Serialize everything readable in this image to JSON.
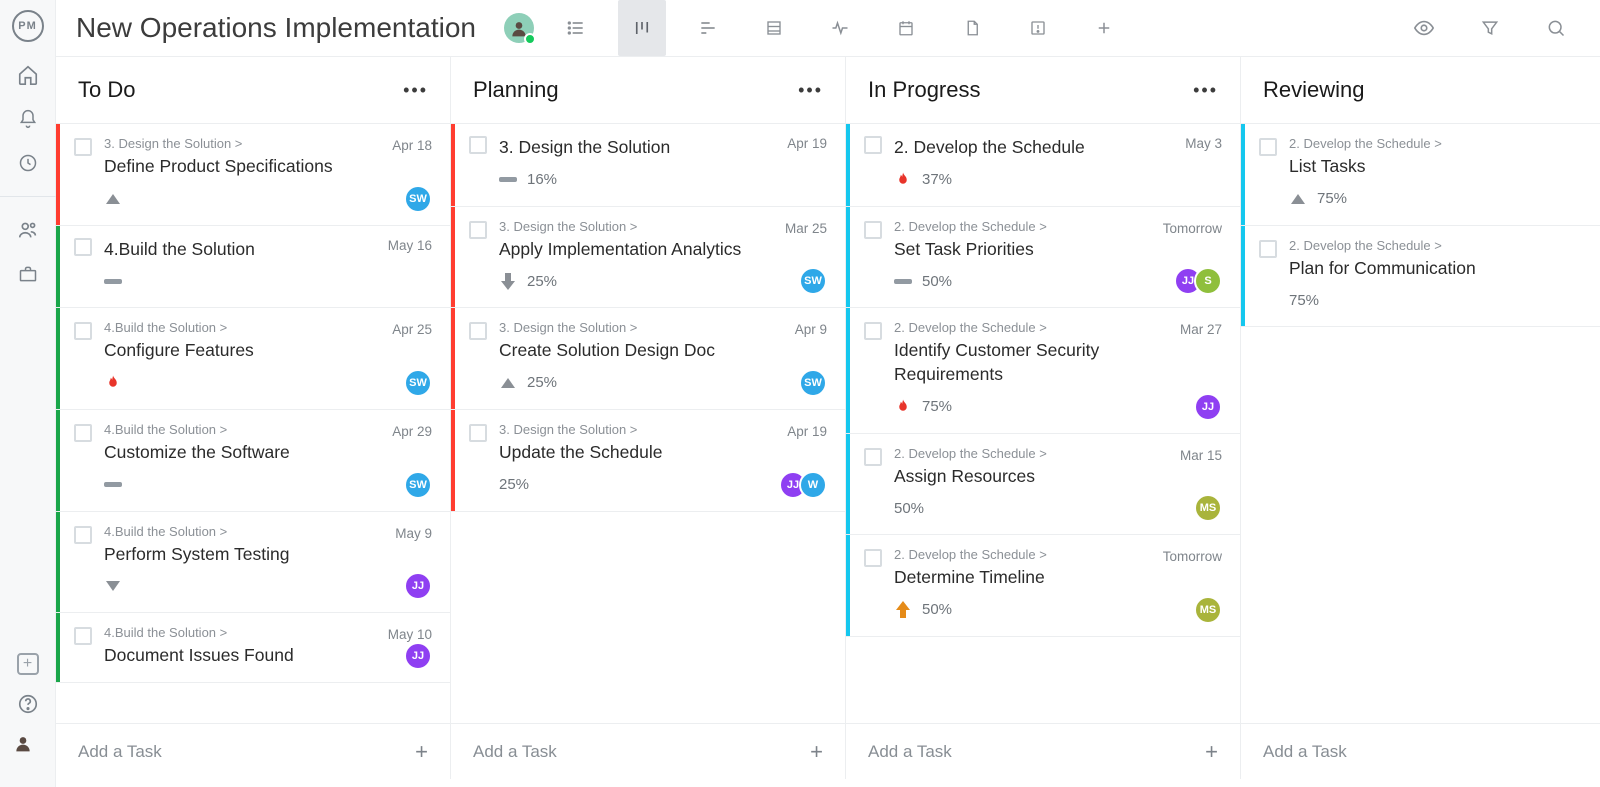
{
  "project_title": "New Operations Implementation",
  "rail": {
    "logo_text": "PM"
  },
  "colors": {
    "red": "#ff3d30",
    "green": "#1aa64a",
    "cyan": "#15c7ee",
    "blueAvatar": "#2fa8e8",
    "purpleAvatar": "#8f3ff2",
    "oliveAvatar": "#a9b43b",
    "limeAvatar": "#8fbf3c",
    "fire": "#e8342a",
    "orange": "#e58b19",
    "grayArrow": "#8a8f95"
  },
  "columns": [
    {
      "id": "todo",
      "title": "To Do",
      "add_label": "Add a Task",
      "cards": [
        {
          "stripe": "#ff3d30",
          "crumb": "3. Design the Solution >",
          "name": "Define Product Specifications",
          "date": "Apr 18",
          "priority": "up-gray",
          "pct": "",
          "assignees": [
            {
              "text": "SW",
              "bg": "#2fa8e8"
            }
          ]
        },
        {
          "stripe": "#1aa64a",
          "crumb": "",
          "name": "4.Build the Solution",
          "date": "May 16",
          "priority": "bar",
          "pct": "",
          "assignees": [],
          "bigtask": true
        },
        {
          "stripe": "#1aa64a",
          "crumb": "4.Build the Solution >",
          "name": "Configure Features",
          "date": "Apr 25",
          "priority": "fire",
          "pct": "",
          "assignees": [
            {
              "text": "SW",
              "bg": "#2fa8e8"
            }
          ]
        },
        {
          "stripe": "#1aa64a",
          "crumb": "4.Build the Solution >",
          "name": "Customize the Software",
          "date": "Apr 29",
          "priority": "bar",
          "pct": "",
          "assignees": [
            {
              "text": "SW",
              "bg": "#2fa8e8"
            }
          ]
        },
        {
          "stripe": "#1aa64a",
          "crumb": "4.Build the Solution >",
          "name": "Perform System Testing",
          "date": "May 9",
          "priority": "down-gray",
          "pct": "",
          "assignees": [
            {
              "text": "JJ",
              "bg": "#8f3ff2"
            }
          ]
        },
        {
          "stripe": "#1aa64a",
          "crumb": "4.Build the Solution >",
          "name": "Document Issues Found",
          "date": "May 10",
          "priority": "",
          "pct": "",
          "assignees": [
            {
              "text": "JJ",
              "bg": "#8f3ff2"
            }
          ]
        }
      ]
    },
    {
      "id": "planning",
      "title": "Planning",
      "add_label": "Add a Task",
      "cards": [
        {
          "stripe": "#ff3d30",
          "crumb": "",
          "name": "3. Design the Solution",
          "date": "Apr 19",
          "priority": "bar",
          "pct": "16%",
          "assignees": [],
          "bigtask": true
        },
        {
          "stripe": "#ff3d30",
          "crumb": "3. Design the Solution >",
          "name": "Apply Implementation Analytics",
          "date": "Mar 25",
          "priority": "down-solid",
          "pct": "25%",
          "assignees": [
            {
              "text": "SW",
              "bg": "#2fa8e8"
            }
          ]
        },
        {
          "stripe": "#ff3d30",
          "crumb": "3. Design the Solution >",
          "name": "Create Solution Design Doc",
          "date": "Apr 9",
          "priority": "up-gray",
          "pct": "25%",
          "assignees": [
            {
              "text": "SW",
              "bg": "#2fa8e8"
            }
          ]
        },
        {
          "stripe": "#ff3d30",
          "crumb": "3. Design the Solution >",
          "name": "Update the Schedule",
          "date": "Apr 19",
          "priority": "",
          "pct": "25%",
          "assignees": [
            {
              "text": "JJ",
              "bg": "#8f3ff2"
            },
            {
              "text": "W",
              "bg": "#2fa8e8"
            }
          ]
        }
      ]
    },
    {
      "id": "inprogress",
      "title": "In Progress",
      "add_label": "Add a Task",
      "cards": [
        {
          "stripe": "#15c7ee",
          "crumb": "",
          "name": "2. Develop the Schedule",
          "date": "May 3",
          "priority": "fire",
          "pct": "37%",
          "assignees": [],
          "bigtask": true
        },
        {
          "stripe": "#15c7ee",
          "crumb": "2. Develop the Schedule >",
          "name": "Set Task Priorities",
          "date": "Tomorrow",
          "priority": "bar",
          "pct": "50%",
          "assignees": [
            {
              "text": "JJ",
              "bg": "#8f3ff2"
            },
            {
              "text": "S",
              "bg": "#8fbf3c"
            }
          ]
        },
        {
          "stripe": "#15c7ee",
          "crumb": "2. Develop the Schedule >",
          "name": "Identify Customer Security Requirements",
          "date": "Mar 27",
          "priority": "fire",
          "pct": "75%",
          "assignees": [
            {
              "text": "JJ",
              "bg": "#8f3ff2"
            }
          ]
        },
        {
          "stripe": "#15c7ee",
          "crumb": "2. Develop the Schedule >",
          "name": "Assign Resources",
          "date": "Mar 15",
          "priority": "",
          "pct": "50%",
          "assignees": [
            {
              "text": "MS",
              "bg": "#a9b43b"
            }
          ]
        },
        {
          "stripe": "#15c7ee",
          "crumb": "2. Develop the Schedule >",
          "name": "Determine Timeline",
          "date": "Tomorrow",
          "priority": "up-orange",
          "pct": "50%",
          "assignees": [
            {
              "text": "MS",
              "bg": "#a9b43b"
            }
          ]
        }
      ]
    },
    {
      "id": "reviewing",
      "title": "Reviewing",
      "add_label": "Add a Task",
      "no_dots": true,
      "cards": [
        {
          "stripe": "#15c7ee",
          "crumb": "2. Develop the Schedule >",
          "name": "List Tasks",
          "date": "",
          "priority": "up-gray",
          "pct": "75%",
          "assignees": []
        },
        {
          "stripe": "#15c7ee",
          "crumb": "2. Develop the Schedule >",
          "name": "Plan for Communication",
          "date": "",
          "priority": "",
          "pct": "75%",
          "assignees": []
        }
      ]
    }
  ],
  "edge_text": "To"
}
